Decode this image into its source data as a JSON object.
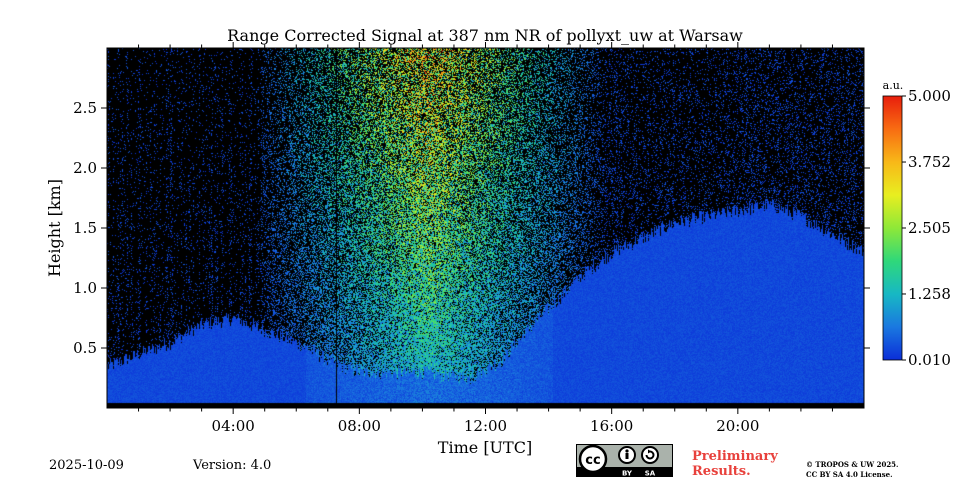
{
  "chart_data": {
    "type": "heatmap",
    "title": "Range Corrected Signal at 387 nm NR of pollyxt_uw at Warsaw",
    "xlabel": "Time [UTC]",
    "ylabel": "Height [km]",
    "xlim_hours": [
      0,
      24
    ],
    "ylim_km": [
      0,
      3.0
    ],
    "x_ticks": [
      "04:00",
      "08:00",
      "12:00",
      "16:00",
      "20:00"
    ],
    "x_tick_hours": [
      4,
      8,
      12,
      16,
      20
    ],
    "y_ticks": [
      "0.5",
      "1.0",
      "1.5",
      "2.0",
      "2.5"
    ],
    "y_tick_values": [
      0.5,
      1.0,
      1.5,
      2.0,
      2.5
    ],
    "colorbar": {
      "unit_label": "a.u.",
      "ticks": [
        "0.010",
        "1.258",
        "2.505",
        "3.752",
        "5.000"
      ],
      "tick_values": [
        0.01,
        1.258,
        2.505,
        3.752,
        5.0
      ],
      "range": [
        0.01,
        5.0
      ],
      "colormap": [
        "#0b2ed8",
        "#1a78e0",
        "#17b8c4",
        "#2fd87a",
        "#8ee838",
        "#e8ee20",
        "#f8b818",
        "#f86c12",
        "#e81e0c"
      ]
    },
    "aerosol_layer_top_km": [
      [
        0.0,
        0.35
      ],
      [
        1.0,
        0.45
      ],
      [
        2.0,
        0.55
      ],
      [
        3.0,
        0.7
      ],
      [
        4.0,
        0.75
      ],
      [
        5.0,
        0.65
      ],
      [
        6.0,
        0.55
      ],
      [
        7.0,
        0.4
      ],
      [
        8.0,
        0.3
      ],
      [
        10.0,
        0.3
      ],
      [
        11.5,
        0.25
      ],
      [
        12.5,
        0.4
      ],
      [
        13.5,
        0.7
      ],
      [
        15.0,
        1.1
      ],
      [
        16.0,
        1.3
      ],
      [
        18.0,
        1.55
      ],
      [
        20.0,
        1.65
      ],
      [
        21.0,
        1.7
      ],
      [
        22.0,
        1.6
      ],
      [
        23.0,
        1.45
      ],
      [
        24.0,
        1.3
      ]
    ],
    "instrument_gap_hour": 7.25,
    "colors": {
      "background_no_signal": "#000000",
      "low_signal": "#0b2ed8"
    }
  },
  "footer": {
    "date": "2025-10-09",
    "version": "Version: 4.0",
    "prelim_line1": "Preliminary",
    "prelim_line2": "Results.",
    "copyright_line1": "© TROPOS & UW 2025.",
    "copyright_line2": "CC BY SA 4.0 License.",
    "license_badge": {
      "cc": "cc",
      "by": "BY",
      "sa": "SA"
    }
  }
}
